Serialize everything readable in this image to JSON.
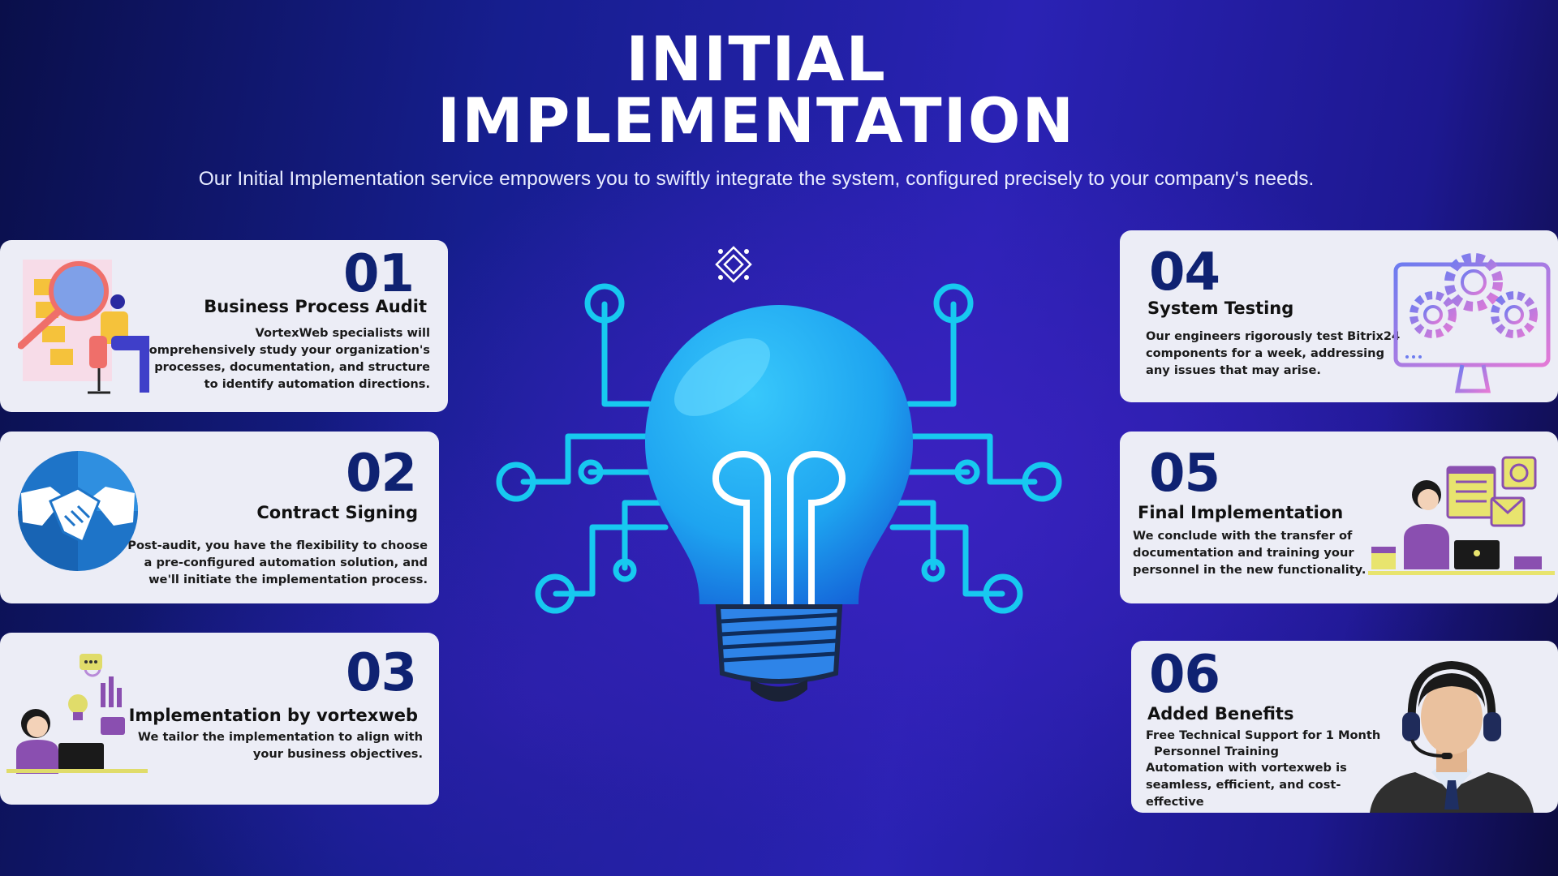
{
  "header": {
    "title_line1": "INITIAL",
    "title_line2": "IMPLEMENTATION",
    "subtitle": "Our Initial Implementation service empowers you to swiftly integrate the system, configured precisely to your company's needs."
  },
  "steps": [
    {
      "number": "01",
      "title": "Business Process Audit",
      "description": "VortexWeb specialists will comprehensively study your organization's processes, documentation, and structure to identify automation directions.",
      "illustration": "audit-magnifier-icon"
    },
    {
      "number": "02",
      "title": "Contract Signing",
      "description": "Post-audit, you have the flexibility to choose a pre-configured automation solution, and we'll initiate the implementation process.",
      "illustration": "handshake-icon"
    },
    {
      "number": "03",
      "title": "Implementation by vortexweb",
      "description": "We tailor the implementation to align with your business objectives.",
      "illustration": "laptop-worker-icon"
    },
    {
      "number": "04",
      "title": "System Testing",
      "description": "Our engineers rigorously test Bitrix24 components for a week, addressing any issues that may arise.",
      "illustration": "monitor-gears-icon"
    },
    {
      "number": "05",
      "title": "Final Implementation",
      "description": "We conclude with the transfer of documentation and training your personnel in the new functionality.",
      "illustration": "office-worker-icon"
    },
    {
      "number": "06",
      "title": "Added Benefits",
      "benefits": [
        "Free Technical Support for 1 Month",
        "Personnel Training",
        "Automation with vortexweb is seamless, efficient, and cost-effective"
      ],
      "illustration": "support-agent-icon"
    }
  ],
  "center": {
    "icon": "lightbulb-circuit-icon",
    "brand_icon": "diamond-logo-icon"
  },
  "colors": {
    "card_bg": "#ecedf6",
    "number": "#0f2272",
    "circuit": "#17c9f0",
    "bulb": "#22b6f4"
  }
}
